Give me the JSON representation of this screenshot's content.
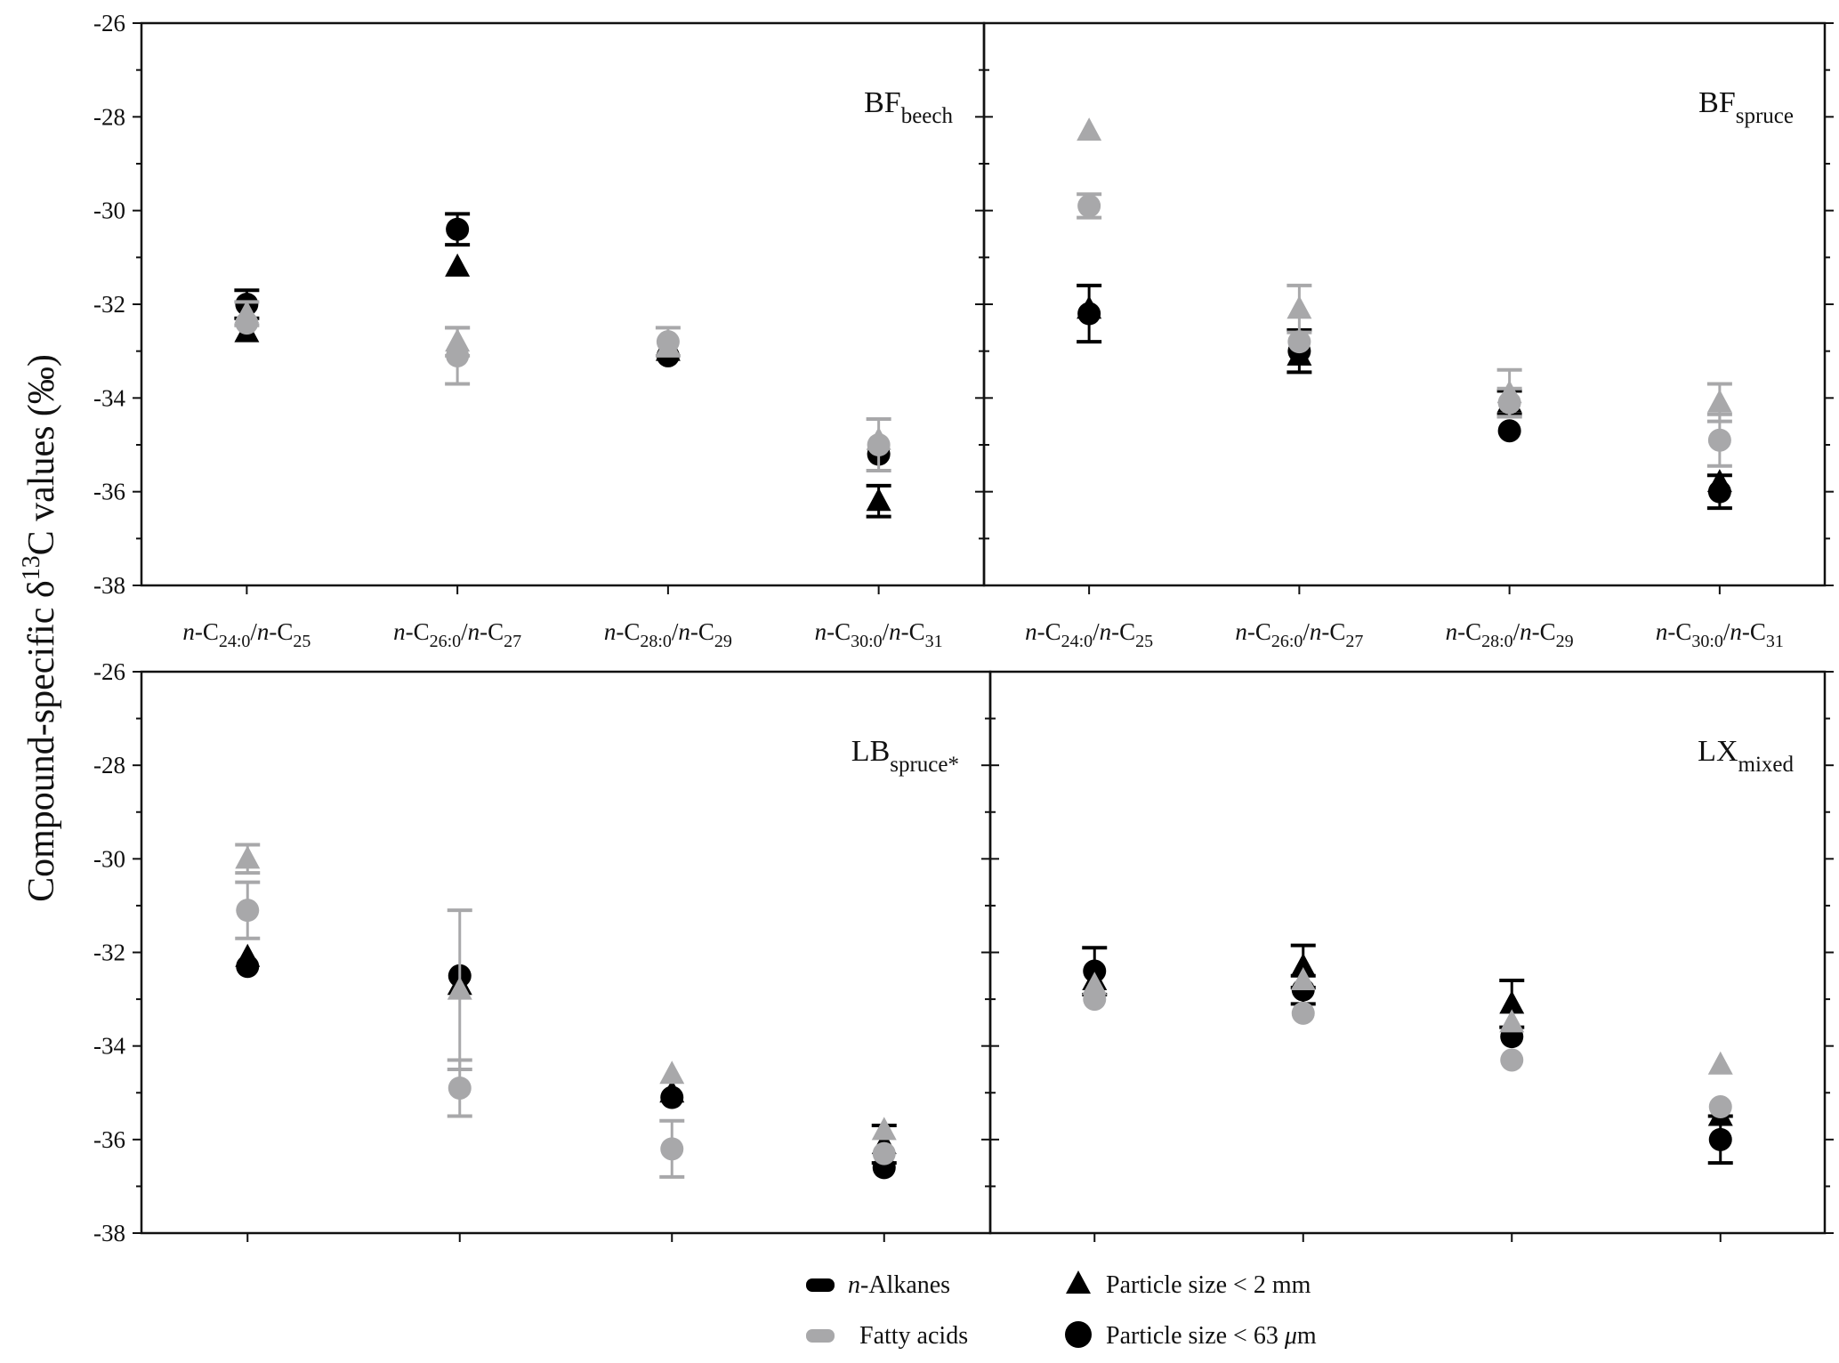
{
  "colors": {
    "alkanes": "#000000",
    "fatty_acids": "#a8a8aa"
  },
  "chart_data": {
    "type": "scatter",
    "ylabel": {
      "pre": "Compound-specific δ",
      "sup": "13",
      "post": "C values (‰)"
    },
    "ylim": [
      -38,
      -26
    ],
    "yticks": [
      "-26",
      "-28",
      "-30",
      "-32",
      "-34",
      "-36",
      "-38"
    ],
    "categories": [
      {
        "a": "n",
        "b": "-C",
        "s1": "24:0",
        "c": "/",
        "d": "n",
        "e": "-C",
        "s2": "25"
      },
      {
        "a": "n",
        "b": "-C",
        "s1": "26:0",
        "c": "/",
        "d": "n",
        "e": "-C",
        "s2": "27"
      },
      {
        "a": "n",
        "b": "-C",
        "s1": "28:0",
        "c": "/",
        "d": "n",
        "e": "-C",
        "s2": "29"
      },
      {
        "a": "n",
        "b": "-C",
        "s1": "30:0",
        "c": "/",
        "d": "n",
        "e": "-C",
        "s2": "31"
      }
    ],
    "legend": {
      "alkanes": {
        "a": "n",
        "b": "-Alkanes"
      },
      "fatty_acids": "Fatty acids",
      "coarse": "Particle size  < 2 mm",
      "fine": {
        "pre": "Particle size  < 63 ",
        "mu": "μ",
        "post": "m"
      }
    },
    "panels": [
      {
        "title": {
          "main": "BF",
          "sub": "beech"
        },
        "series": [
          {
            "group": "alkanes",
            "size": "fine",
            "values": [
              -32.0,
              -30.4,
              -33.1,
              -35.2
            ],
            "errors": [
              0.3,
              0.33,
              null,
              null
            ]
          },
          {
            "group": "alkanes",
            "size": "coarse",
            "values": [
              -32.6,
              -31.2,
              -33.0,
              -36.2
            ],
            "errors": [
              null,
              null,
              null,
              0.33
            ]
          },
          {
            "group": "fatty_acids",
            "size": "fine",
            "values": [
              -32.4,
              -33.1,
              -32.8,
              -35.0
            ],
            "errors": [
              null,
              0.6,
              0.3,
              0.55
            ]
          },
          {
            "group": "fatty_acids",
            "size": "coarse",
            "values": [
              -32.2,
              -32.8,
              -32.9,
              -34.9
            ],
            "errors": [
              0.25,
              0.3,
              null,
              null
            ]
          }
        ]
      },
      {
        "title": {
          "main": "BF",
          "sub": "spruce"
        },
        "series": [
          {
            "group": "alkanes",
            "size": "fine",
            "values": [
              -32.2,
              -33.0,
              -34.7,
              -36.0
            ],
            "errors": [
              0.6,
              0.45,
              null,
              0.35
            ]
          },
          {
            "group": "alkanes",
            "size": "coarse",
            "values": [
              -32.1,
              -33.1,
              -34.1,
              -35.8
            ],
            "errors": [
              null,
              null,
              0.25,
              null
            ]
          },
          {
            "group": "fatty_acids",
            "size": "fine",
            "values": [
              -29.9,
              -32.8,
              -34.1,
              -34.9
            ],
            "errors": [
              0.25,
              null,
              0.3,
              0.55
            ]
          },
          {
            "group": "fatty_acids",
            "size": "coarse",
            "values": [
              -28.3,
              -32.1,
              -33.9,
              -34.1
            ],
            "errors": [
              null,
              0.5,
              0.5,
              0.4
            ]
          }
        ]
      },
      {
        "title": {
          "main": "LB",
          "sub": "spruce*"
        },
        "series": [
          {
            "group": "alkanes",
            "size": "fine",
            "values": [
              -32.3,
              -32.5,
              -35.1,
              -36.6
            ],
            "errors": [
              null,
              null,
              null,
              null
            ]
          },
          {
            "group": "alkanes",
            "size": "coarse",
            "values": [
              -32.1,
              -32.7,
              -35.0,
              -36.1
            ],
            "errors": [
              null,
              null,
              null,
              0.4
            ]
          },
          {
            "group": "fatty_acids",
            "size": "fine",
            "values": [
              -31.1,
              -34.9,
              -36.2,
              -36.3
            ],
            "errors": [
              0.6,
              0.6,
              0.6,
              null
            ]
          },
          {
            "group": "fatty_acids",
            "size": "coarse",
            "values": [
              -30.0,
              -32.8,
              -34.6,
              -35.8
            ],
            "errors": [
              0.3,
              1.7,
              null,
              null
            ]
          }
        ]
      },
      {
        "title": {
          "main": "LX",
          "sub": "mixed"
        },
        "series": [
          {
            "group": "alkanes",
            "size": "fine",
            "values": [
              -32.4,
              -32.8,
              -33.8,
              -36.0
            ],
            "errors": [
              0.5,
              0.3,
              null,
              0.5
            ]
          },
          {
            "group": "alkanes",
            "size": "coarse",
            "values": [
              -32.6,
              -32.3,
              -33.1,
              -35.5
            ],
            "errors": [
              null,
              0.45,
              0.5,
              null
            ]
          },
          {
            "group": "fatty_acids",
            "size": "fine",
            "values": [
              -33.0,
              -33.3,
              -34.3,
              -35.3
            ],
            "errors": [
              null,
              null,
              null,
              null
            ]
          },
          {
            "group": "fatty_acids",
            "size": "coarse",
            "values": [
              -32.7,
              -32.6,
              -33.5,
              -34.4
            ],
            "errors": [
              null,
              null,
              null,
              null
            ]
          }
        ]
      }
    ]
  }
}
